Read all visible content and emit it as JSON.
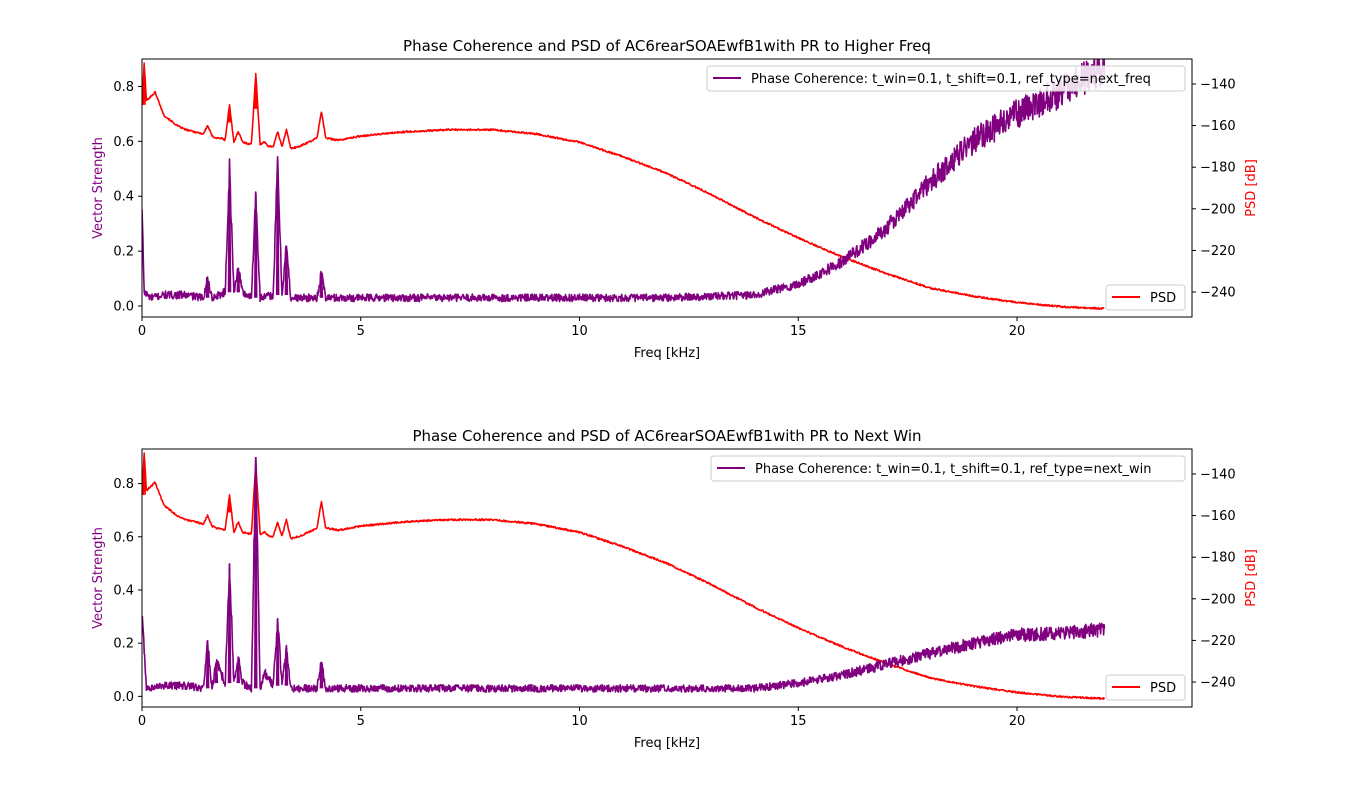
{
  "figure": {
    "colors": {
      "coherence": "#800080",
      "psd": "#ff0000",
      "axis": "#000000",
      "background": "#ffffff"
    }
  },
  "chart_data": [
    {
      "type": "line",
      "title": "Phase Coherence and PSD of AC6rearSOAEwfB1with PR to Higher Freq",
      "xlabel": "Freq [kHz]",
      "ylabel_left": "Vector Strength",
      "ylabel_right": "PSD [dB]",
      "xlim": [
        0,
        24
      ],
      "ylim_left": [
        -0.04,
        0.9
      ],
      "ylim_right": [
        -252,
        -128
      ],
      "xticks": [
        0,
        5,
        10,
        15,
        20
      ],
      "xtick_labels": [
        "0",
        "5",
        "10",
        "15",
        "20"
      ],
      "yticks_left": [
        0.0,
        0.2,
        0.4,
        0.6,
        0.8
      ],
      "ytick_labels_left": [
        "0.0",
        "0.2",
        "0.4",
        "0.6",
        "0.8"
      ],
      "yticks_right": [
        -140,
        -160,
        -180,
        -200,
        -220,
        -240
      ],
      "ytick_labels_right": [
        "−140",
        "−160",
        "−180",
        "−200",
        "−220",
        "−240"
      ],
      "legend_coherence": "Phase Coherence: t_win=0.1, t_shift=0.1, ref_type=next_freq",
      "legend_psd": "PSD",
      "legend_coherence_loc": "upper right",
      "legend_psd_loc": "lower right",
      "series": [
        {
          "name": "Phase Coherence: t_win=0.1, t_shift=0.1, ref_type=next_freq",
          "axis": "left",
          "x": [
            0,
            0.05,
            0.2,
            0.5,
            1.0,
            1.4,
            1.5,
            1.6,
            1.9,
            2.0,
            2.1,
            2.2,
            2.3,
            2.5,
            2.6,
            2.7,
            3.0,
            3.1,
            3.2,
            3.3,
            3.4,
            4.0,
            4.1,
            4.2,
            5,
            8,
            12,
            14,
            15,
            16,
            17,
            18,
            19,
            20,
            21,
            22
          ],
          "y": [
            0.35,
            0.05,
            0.03,
            0.04,
            0.04,
            0.03,
            0.1,
            0.03,
            0.05,
            0.5,
            0.05,
            0.14,
            0.05,
            0.03,
            0.41,
            0.03,
            0.04,
            0.53,
            0.04,
            0.22,
            0.03,
            0.03,
            0.12,
            0.03,
            0.03,
            0.03,
            0.03,
            0.04,
            0.08,
            0.16,
            0.28,
            0.45,
            0.6,
            0.7,
            0.78,
            0.87
          ]
        },
        {
          "name": "PSD",
          "axis": "right",
          "x": [
            0,
            0.05,
            0.1,
            0.3,
            0.5,
            0.8,
            1.0,
            1.4,
            1.5,
            1.6,
            1.7,
            1.8,
            1.9,
            2.0,
            2.1,
            2.2,
            2.3,
            2.5,
            2.6,
            2.7,
            2.8,
            2.9,
            3.0,
            3.1,
            3.2,
            3.3,
            3.4,
            3.6,
            4.0,
            4.1,
            4.2,
            4.5,
            5,
            6,
            7,
            8,
            9,
            10,
            11,
            12,
            13,
            14,
            15,
            16,
            17,
            18,
            19,
            20,
            21,
            22
          ],
          "y": [
            -150,
            -130,
            -148,
            -144,
            -155,
            -160,
            -162,
            -164,
            -160,
            -165,
            -166,
            -166,
            -167,
            -150,
            -168,
            -163,
            -168,
            -169,
            -135,
            -169,
            -168,
            -170,
            -170,
            -163,
            -170,
            -162,
            -171,
            -170,
            -166,
            -153,
            -166,
            -167,
            -165,
            -163,
            -162,
            -162,
            -164,
            -168,
            -175,
            -183,
            -193,
            -204,
            -214,
            -223,
            -231,
            -238,
            -242,
            -245,
            -247,
            -248
          ]
        }
      ]
    },
    {
      "type": "line",
      "title": "Phase Coherence and PSD of AC6rearSOAEwfB1with PR to Next Win",
      "xlabel": "Freq [kHz]",
      "ylabel_left": "Vector Strength",
      "ylabel_right": "PSD [dB]",
      "xlim": [
        0,
        24
      ],
      "ylim_left": [
        -0.04,
        0.93
      ],
      "ylim_right": [
        -252,
        -128
      ],
      "xticks": [
        0,
        5,
        10,
        15,
        20
      ],
      "xtick_labels": [
        "0",
        "5",
        "10",
        "15",
        "20"
      ],
      "yticks_left": [
        0.0,
        0.2,
        0.4,
        0.6,
        0.8
      ],
      "ytick_labels_left": [
        "0.0",
        "0.2",
        "0.4",
        "0.6",
        "0.8"
      ],
      "yticks_right": [
        -140,
        -160,
        -180,
        -200,
        -220,
        -240
      ],
      "ytick_labels_right": [
        "−140",
        "−160",
        "−180",
        "−200",
        "−220",
        "−240"
      ],
      "legend_coherence": "Phase Coherence: t_win=0.1, t_shift=0.1, ref_type=next_win",
      "legend_psd": "PSD",
      "legend_coherence_loc": "upper right",
      "legend_psd_loc": "lower right",
      "series": [
        {
          "name": "Phase Coherence: t_win=0.1, t_shift=0.1, ref_type=next_win",
          "axis": "left",
          "x": [
            0,
            0.05,
            0.1,
            0.2,
            0.5,
            1.0,
            1.4,
            1.5,
            1.6,
            1.7,
            1.9,
            2.0,
            2.1,
            2.2,
            2.3,
            2.5,
            2.6,
            2.7,
            2.8,
            3.0,
            3.1,
            3.2,
            3.3,
            3.4,
            4.0,
            4.1,
            4.2,
            5,
            8,
            12,
            14,
            15,
            16,
            17,
            18,
            19,
            20,
            21,
            22
          ],
          "y": [
            0.3,
            0.17,
            0.03,
            0.03,
            0.04,
            0.04,
            0.03,
            0.2,
            0.03,
            0.13,
            0.05,
            0.5,
            0.05,
            0.15,
            0.05,
            0.03,
            0.9,
            0.03,
            0.09,
            0.04,
            0.29,
            0.04,
            0.18,
            0.03,
            0.03,
            0.13,
            0.03,
            0.03,
            0.03,
            0.03,
            0.03,
            0.05,
            0.08,
            0.12,
            0.16,
            0.2,
            0.23,
            0.24,
            0.25
          ]
        },
        {
          "name": "PSD",
          "axis": "right",
          "x": [
            0,
            0.05,
            0.1,
            0.3,
            0.5,
            0.8,
            1.0,
            1.4,
            1.5,
            1.6,
            1.7,
            1.8,
            1.9,
            2.0,
            2.1,
            2.2,
            2.3,
            2.5,
            2.6,
            2.7,
            2.8,
            2.9,
            3.0,
            3.1,
            3.2,
            3.3,
            3.4,
            3.6,
            4.0,
            4.1,
            4.2,
            4.5,
            5,
            6,
            7,
            8,
            9,
            10,
            11,
            12,
            13,
            14,
            15,
            16,
            17,
            18,
            19,
            20,
            21,
            22
          ],
          "y": [
            -150,
            -130,
            -148,
            -144,
            -155,
            -160,
            -162,
            -164,
            -160,
            -165,
            -166,
            -166,
            -167,
            -150,
            -168,
            -163,
            -168,
            -169,
            -135,
            -169,
            -168,
            -170,
            -170,
            -163,
            -170,
            -162,
            -171,
            -170,
            -166,
            -153,
            -166,
            -167,
            -165,
            -163,
            -162,
            -162,
            -164,
            -168,
            -175,
            -183,
            -193,
            -204,
            -214,
            -223,
            -231,
            -238,
            -242,
            -245,
            -247,
            -248
          ]
        }
      ]
    }
  ]
}
